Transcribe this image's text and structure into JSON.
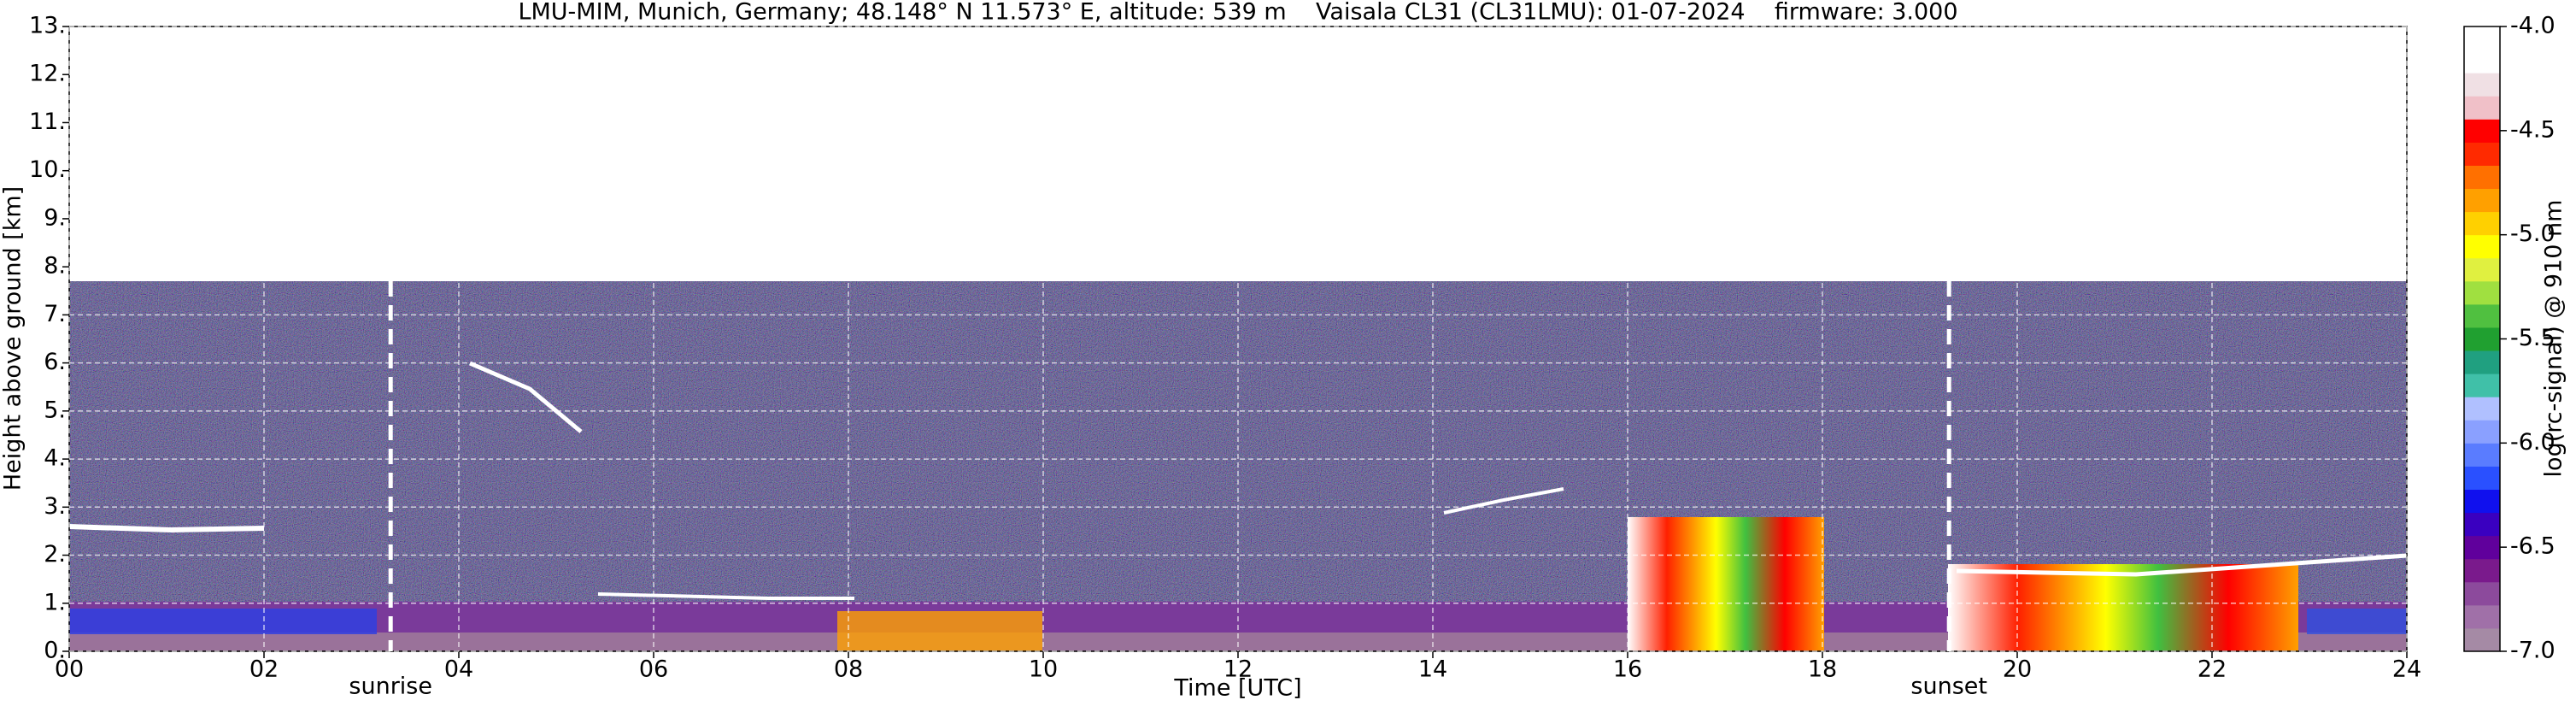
{
  "chart_data": {
    "type": "heatmap",
    "title": "LMU-MIM, Munich, Germany; 48.148° N 11.573° E, altitude: 539 m    Vaisala CL31 (CL31LMU): 01-07-2024    firmware: 3.000",
    "x_label": "Time [UTC]",
    "y_label": "Height above ground [km]",
    "xlim": [
      0,
      24
    ],
    "xticks": [
      {
        "value": 0,
        "label": "00"
      },
      {
        "value": 2,
        "label": "02"
      },
      {
        "value": 4,
        "label": "04"
      },
      {
        "value": 6,
        "label": "06"
      },
      {
        "value": 8,
        "label": "08"
      },
      {
        "value": 10,
        "label": "10"
      },
      {
        "value": 12,
        "label": "12"
      },
      {
        "value": 14,
        "label": "14"
      },
      {
        "value": 16,
        "label": "16"
      },
      {
        "value": 18,
        "label": "18"
      },
      {
        "value": 20,
        "label": "20"
      },
      {
        "value": 22,
        "label": "22"
      },
      {
        "value": 24,
        "label": "24"
      }
    ],
    "ylim": [
      0,
      13
    ],
    "yticks": [
      {
        "value": 0,
        "label": "0."
      },
      {
        "value": 1,
        "label": "1."
      },
      {
        "value": 2,
        "label": "2."
      },
      {
        "value": 3,
        "label": "3."
      },
      {
        "value": 4,
        "label": "4."
      },
      {
        "value": 5,
        "label": "5."
      },
      {
        "value": 6,
        "label": "6."
      },
      {
        "value": 7,
        "label": "7."
      },
      {
        "value": 8,
        "label": "8."
      },
      {
        "value": 9,
        "label": "9."
      },
      {
        "value": 10,
        "label": "10."
      },
      {
        "value": 11,
        "label": "11."
      },
      {
        "value": 12,
        "label": "12."
      },
      {
        "value": 13,
        "label": "13."
      }
    ],
    "grid": true,
    "annotations": [
      {
        "label": "sunrise",
        "x": 3.3
      },
      {
        "label": "sunset",
        "x": 19.3
      }
    ],
    "colorbar": {
      "label": "log(rc-signal) @ 910 nm",
      "lim": [
        -7,
        -4
      ],
      "ticks": [
        {
          "value": -7,
          "label": "-7.0"
        },
        {
          "value": -6.5,
          "label": "-6.5"
        },
        {
          "value": -6,
          "label": "-6.0"
        },
        {
          "value": -5.5,
          "label": "-5.5"
        },
        {
          "value": -5,
          "label": "-5.0"
        },
        {
          "value": -4.5,
          "label": "-4.5"
        },
        {
          "value": -4,
          "label": "-4.0"
        }
      ],
      "colors": [
        "#a58aa5",
        "#a070a8",
        "#8c4a9c",
        "#7a1a8c",
        "#60009c",
        "#3a00c0",
        "#1010ee",
        "#2a50ff",
        "#5a7cff",
        "#8aa0ff",
        "#b0c0ff",
        "#40c0a8",
        "#20a080",
        "#20a030",
        "#50c040",
        "#a0e040",
        "#e0f040",
        "#ffff00",
        "#ffd000",
        "#ffa000",
        "#ff7000",
        "#ff2a00",
        "#ff0000",
        "#f0c0c8",
        "#f0e0e4",
        "#ffffff",
        "#ffffff"
      ]
    }
  }
}
